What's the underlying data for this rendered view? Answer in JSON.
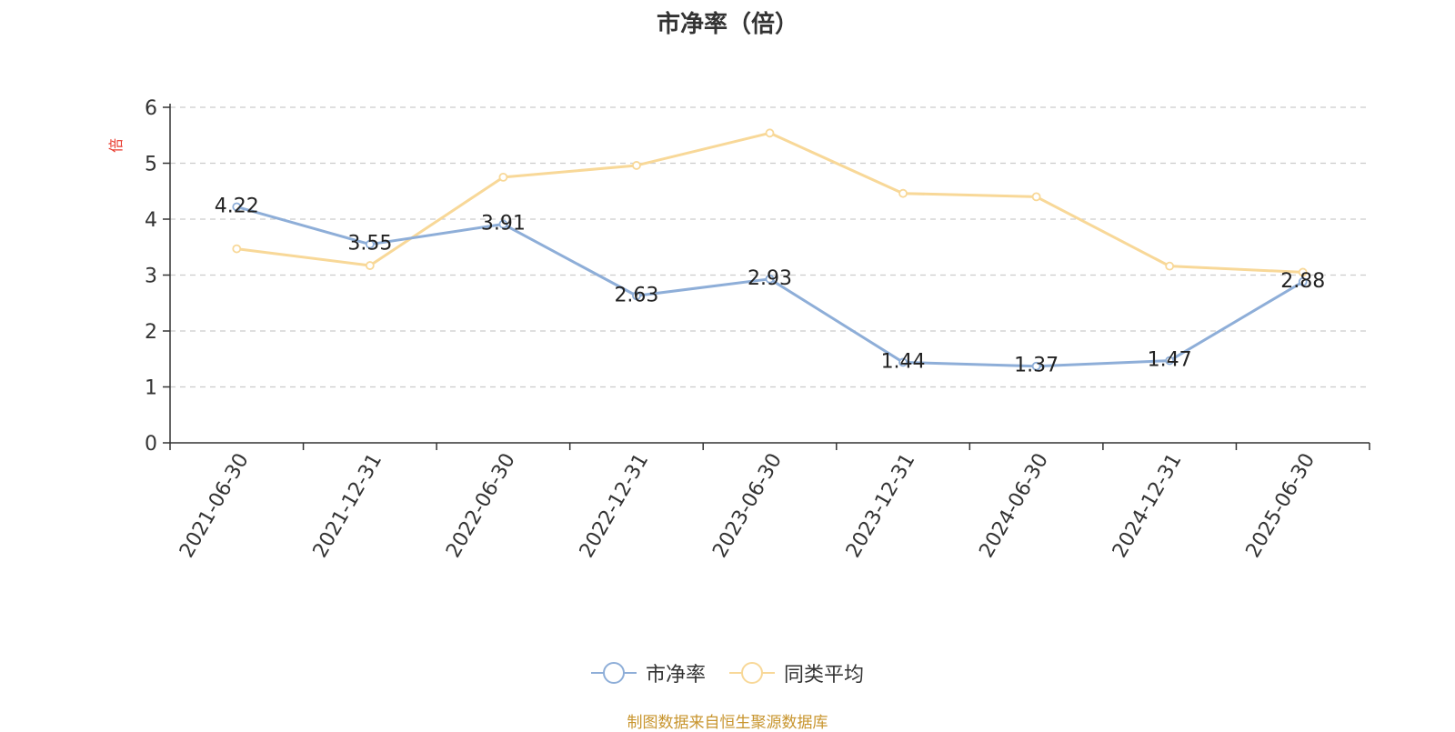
{
  "chart_data": {
    "type": "line",
    "title": "市净率（倍）",
    "ylabel": "倍",
    "xlabel": "",
    "categories": [
      "2021-06-30",
      "2021-12-31",
      "2022-06-30",
      "2022-12-31",
      "2023-06-30",
      "2023-12-31",
      "2024-06-30",
      "2024-12-31",
      "2025-06-30"
    ],
    "ylim": [
      0,
      6
    ],
    "yticks": [
      0,
      1,
      2,
      3,
      4,
      5,
      6
    ],
    "grid": true,
    "legend_position": "bottom",
    "series": [
      {
        "name": "市净率",
        "color": "#8eaed8",
        "values": [
          4.22,
          3.55,
          3.91,
          2.63,
          2.93,
          1.44,
          1.37,
          1.47,
          2.88
        ],
        "data_labels": true
      },
      {
        "name": "同类平均",
        "color": "#f8d898",
        "values": [
          3.47,
          3.17,
          4.75,
          4.96,
          5.54,
          4.46,
          4.4,
          3.16,
          3.05
        ],
        "data_labels": false
      }
    ]
  },
  "source_note": "制图数据来自恒生聚源数据库",
  "colors": {
    "axis": "#333333",
    "grid": "#cccccc",
    "ylabel": "#e8392c",
    "source": "#c8952e"
  }
}
